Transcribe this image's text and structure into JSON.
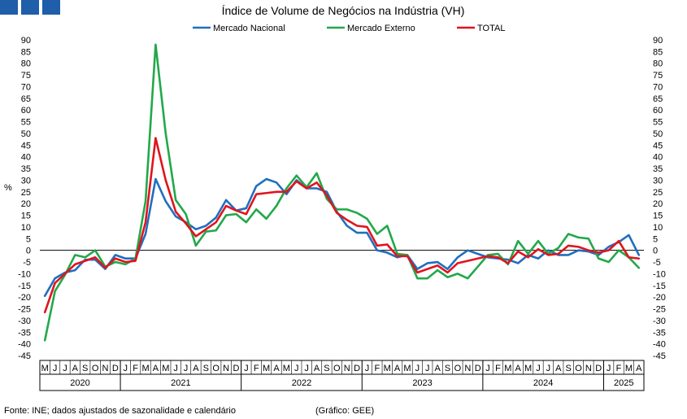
{
  "chart_data": {
    "type": "line",
    "title": "Índice de Volume de Negócios na Indústria (VH)",
    "ylabel": "%",
    "ylim": [
      -45,
      90
    ],
    "ytick_step": 5,
    "grid": false,
    "legend_position": "top-center",
    "source": "Fonte: INE; dados ajustados de sazonalidade e calendário",
    "credit": "(Gráfico: GEE)",
    "months": [
      "M",
      "J",
      "J",
      "A",
      "S",
      "O",
      "N",
      "D",
      "J",
      "F",
      "M",
      "A",
      "M",
      "J",
      "J",
      "A",
      "S",
      "O",
      "N",
      "D",
      "J",
      "F",
      "M",
      "A",
      "M",
      "J",
      "J",
      "A",
      "S",
      "O",
      "N",
      "D",
      "J",
      "F",
      "M",
      "A",
      "M",
      "J",
      "J",
      "A",
      "S",
      "O",
      "N",
      "D",
      "J",
      "F",
      "M",
      "A",
      "M",
      "J",
      "J",
      "A",
      "S",
      "O",
      "N",
      "D",
      "J",
      "F",
      "M",
      "A"
    ],
    "years": [
      {
        "label": "2020",
        "start": 0,
        "count": 8
      },
      {
        "label": "2021",
        "start": 8,
        "count": 12
      },
      {
        "label": "2022",
        "start": 20,
        "count": 12
      },
      {
        "label": "2023",
        "start": 32,
        "count": 12
      },
      {
        "label": "2024",
        "start": 44,
        "count": 12
      },
      {
        "label": "2025",
        "start": 56,
        "count": 4
      }
    ],
    "series": [
      {
        "name": "Mercado Nacional",
        "color": "#1f6fbf",
        "values": [
          -19.5,
          -12,
          -9.5,
          -8.5,
          -4,
          -4,
          -8,
          -2,
          -3.5,
          -3.5,
          7,
          30.5,
          21,
          14.5,
          12,
          9,
          10.5,
          14,
          21.5,
          17,
          18,
          27.5,
          30.5,
          29,
          24,
          30,
          26.5,
          26.5,
          25,
          16.5,
          10.5,
          7.5,
          7.5,
          0,
          -1,
          -3,
          -2,
          -8,
          -5.5,
          -5,
          -8,
          -3,
          0,
          -1.5,
          -3,
          -3.5,
          -4,
          -5.5,
          -2,
          -3.5,
          0,
          -2,
          -2,
          0,
          -0.5,
          -2,
          1.5,
          3.5,
          6.5,
          -2
        ]
      },
      {
        "name": "Mercado Externo",
        "color": "#22a84a",
        "values": [
          -38.5,
          -17.5,
          -10.5,
          -2,
          -3,
          0,
          -7,
          -5,
          -6,
          -3.5,
          21,
          88,
          50,
          21.5,
          15.5,
          2,
          8,
          8.5,
          15,
          15.5,
          12,
          17.5,
          13.5,
          19,
          26.5,
          32,
          27,
          33,
          22,
          17.5,
          17.5,
          16,
          13.5,
          7,
          10.5,
          -1.5,
          -2,
          -12,
          -12,
          -8.5,
          -11.5,
          -10,
          -12,
          -7,
          -2,
          -1.5,
          -6,
          4,
          -1.5,
          4,
          -1.5,
          1,
          7,
          5.5,
          5,
          -3.5,
          -5,
          0,
          -3,
          -7.5
        ]
      },
      {
        "name": "TOTAL",
        "color": "#e0141e",
        "values": [
          -26.5,
          -14,
          -10,
          -6,
          -4.5,
          -3,
          -7.5,
          -3.5,
          -5,
          -4.5,
          12,
          48,
          30,
          16.5,
          11.5,
          6,
          9,
          12,
          19,
          17,
          15.5,
          24,
          24.5,
          25,
          25,
          29.5,
          26.5,
          29,
          23.5,
          16,
          13,
          10.5,
          10,
          2,
          2.5,
          -2.5,
          -2.5,
          -9.5,
          -8,
          -6.5,
          -9.5,
          -5.5,
          -4.5,
          -3.5,
          -2.5,
          -3,
          -5.5,
          -0.5,
          -3,
          0.5,
          -2,
          -1.5,
          2,
          1.5,
          0,
          -1,
          0,
          4,
          -3,
          -3.5
        ]
      }
    ]
  }
}
